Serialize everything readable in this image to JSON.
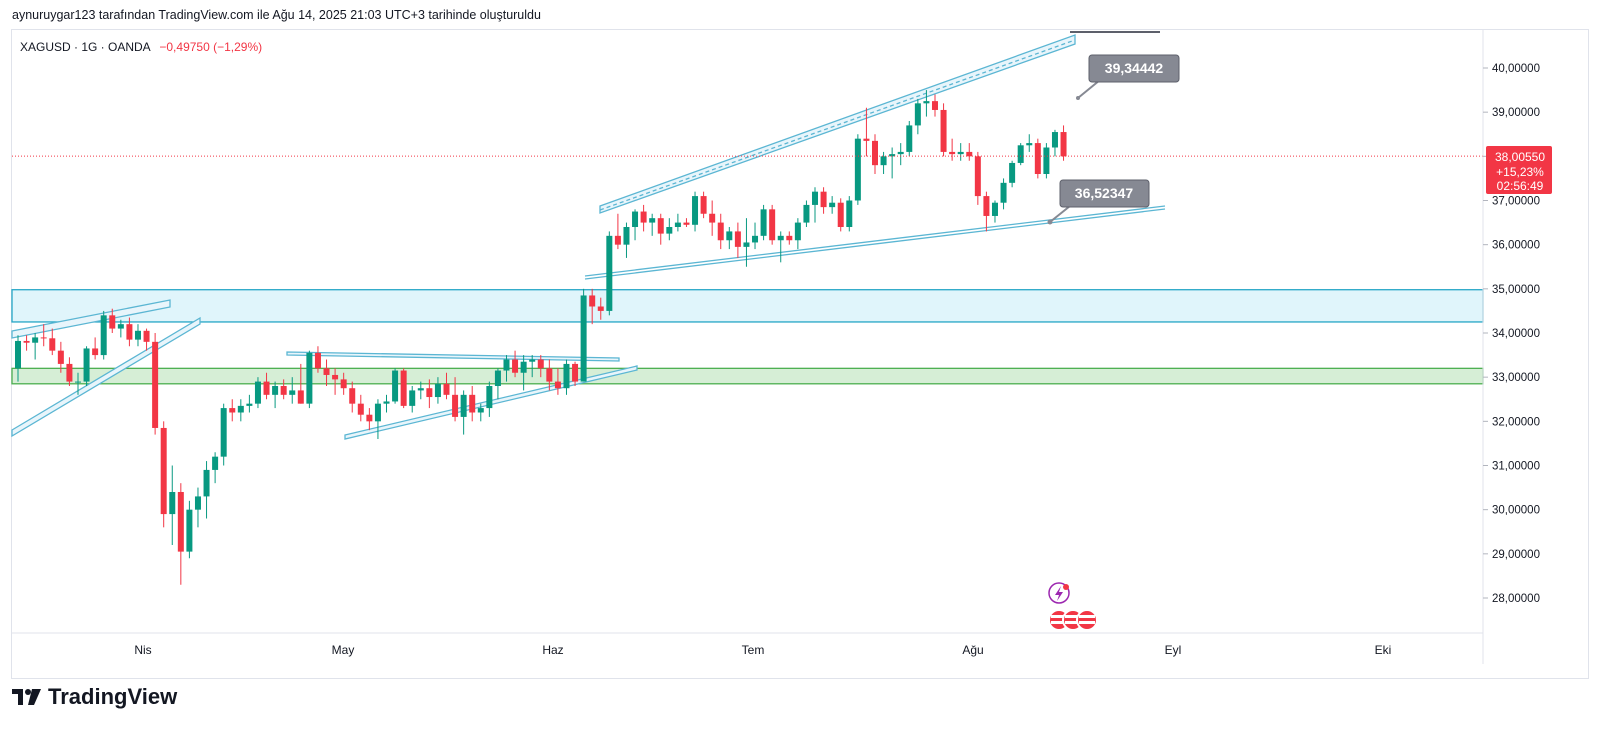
{
  "caption": "aynuruygar123 tarafından TradingView.com ile Ağu 14, 2025 21:03 UTC+3 tarihinde oluşturuldu",
  "symbol": {
    "name": "XAGUSD · 1G · OANDA",
    "change": "−0,49750 (−1,29%)"
  },
  "price_badge": {
    "price": "38,00550",
    "percent": "+15,23%",
    "countdown": "02:56:49"
  },
  "callouts": {
    "upper": "39,34442",
    "lower": "36,52347"
  },
  "brand": "TradingView",
  "colors": {
    "up": "#089981",
    "down": "#f23645",
    "channel": "#5bb6d3",
    "zone_blue": "#e0f5fb",
    "zone_green": "#d6eed6",
    "callout_bg": "#868993"
  },
  "chart_data": {
    "type": "candlestick",
    "title": "XAGUSD · 1G · OANDA",
    "ylim": [
      27.2,
      40.6
    ],
    "y_ticks": [
      "28,00000",
      "29,00000",
      "30,00000",
      "31,00000",
      "32,00000",
      "33,00000",
      "34,00000",
      "35,00000",
      "36,00000",
      "37,00000",
      "38,00000",
      "39,00000",
      "40,00000"
    ],
    "x_ticks": [
      "Nis",
      "May",
      "Haz",
      "Tem",
      "Ağu",
      "Eyl",
      "Eki"
    ],
    "last_price": 38.0055,
    "zones": [
      {
        "name": "resistance-zone",
        "low": 34.25,
        "high": 34.98
      },
      {
        "name": "support-zone",
        "low": 32.85,
        "high": 33.2
      }
    ],
    "candles": [
      {
        "o": 33.2,
        "h": 33.95,
        "l": 32.9,
        "c": 33.82
      },
      {
        "o": 33.82,
        "h": 33.95,
        "l": 33.6,
        "c": 33.78
      },
      {
        "o": 33.78,
        "h": 34.0,
        "l": 33.4,
        "c": 33.9
      },
      {
        "o": 33.9,
        "h": 34.2,
        "l": 33.7,
        "c": 33.88
      },
      {
        "o": 33.88,
        "h": 34.1,
        "l": 33.5,
        "c": 33.6
      },
      {
        "o": 33.6,
        "h": 33.8,
        "l": 33.1,
        "c": 33.3
      },
      {
        "o": 33.3,
        "h": 33.45,
        "l": 32.8,
        "c": 32.9
      },
      {
        "o": 32.9,
        "h": 33.1,
        "l": 32.6,
        "c": 32.9
      },
      {
        "o": 32.9,
        "h": 33.7,
        "l": 32.8,
        "c": 33.65
      },
      {
        "o": 33.65,
        "h": 33.9,
        "l": 33.4,
        "c": 33.5
      },
      {
        "o": 33.5,
        "h": 34.5,
        "l": 33.4,
        "c": 34.4
      },
      {
        "o": 34.4,
        "h": 34.55,
        "l": 34.0,
        "c": 34.1
      },
      {
        "o": 34.1,
        "h": 34.3,
        "l": 33.9,
        "c": 34.2
      },
      {
        "o": 34.2,
        "h": 34.35,
        "l": 33.7,
        "c": 33.85
      },
      {
        "o": 33.85,
        "h": 34.2,
        "l": 33.7,
        "c": 34.05
      },
      {
        "o": 34.05,
        "h": 34.1,
        "l": 33.6,
        "c": 33.8
      },
      {
        "o": 33.8,
        "h": 34.0,
        "l": 31.7,
        "c": 31.85
      },
      {
        "o": 31.85,
        "h": 32.0,
        "l": 29.6,
        "c": 29.9
      },
      {
        "o": 29.9,
        "h": 31.0,
        "l": 29.2,
        "c": 30.4
      },
      {
        "o": 30.4,
        "h": 30.6,
        "l": 28.3,
        "c": 29.05
      },
      {
        "o": 29.05,
        "h": 30.2,
        "l": 28.9,
        "c": 30.0
      },
      {
        "o": 30.0,
        "h": 30.5,
        "l": 29.6,
        "c": 30.3
      },
      {
        "o": 30.3,
        "h": 31.1,
        "l": 29.8,
        "c": 30.9
      },
      {
        "o": 30.9,
        "h": 31.3,
        "l": 30.6,
        "c": 31.2
      },
      {
        "o": 31.2,
        "h": 32.4,
        "l": 31.0,
        "c": 32.3
      },
      {
        "o": 32.3,
        "h": 32.5,
        "l": 32.0,
        "c": 32.2
      },
      {
        "o": 32.2,
        "h": 32.5,
        "l": 32.0,
        "c": 32.35
      },
      {
        "o": 32.35,
        "h": 32.6,
        "l": 32.2,
        "c": 32.4
      },
      {
        "o": 32.4,
        "h": 33.0,
        "l": 32.3,
        "c": 32.9
      },
      {
        "o": 32.9,
        "h": 33.1,
        "l": 32.5,
        "c": 32.6
      },
      {
        "o": 32.6,
        "h": 32.9,
        "l": 32.3,
        "c": 32.8
      },
      {
        "o": 32.8,
        "h": 32.95,
        "l": 32.5,
        "c": 32.6
      },
      {
        "o": 32.6,
        "h": 33.0,
        "l": 32.4,
        "c": 32.7
      },
      {
        "o": 32.7,
        "h": 33.3,
        "l": 32.4,
        "c": 32.4
      },
      {
        "o": 32.4,
        "h": 33.6,
        "l": 32.3,
        "c": 33.55
      },
      {
        "o": 33.55,
        "h": 33.7,
        "l": 33.1,
        "c": 33.2
      },
      {
        "o": 33.2,
        "h": 33.4,
        "l": 32.8,
        "c": 33.05
      },
      {
        "o": 33.05,
        "h": 33.2,
        "l": 32.6,
        "c": 32.95
      },
      {
        "o": 32.95,
        "h": 33.1,
        "l": 32.6,
        "c": 32.75
      },
      {
        "o": 32.75,
        "h": 32.9,
        "l": 32.2,
        "c": 32.4
      },
      {
        "o": 32.4,
        "h": 32.6,
        "l": 32.0,
        "c": 32.15
      },
      {
        "o": 32.15,
        "h": 32.3,
        "l": 31.8,
        "c": 32.0
      },
      {
        "o": 32.0,
        "h": 32.5,
        "l": 31.6,
        "c": 32.4
      },
      {
        "o": 32.4,
        "h": 32.6,
        "l": 32.2,
        "c": 32.45
      },
      {
        "o": 32.45,
        "h": 33.2,
        "l": 32.4,
        "c": 33.15
      },
      {
        "o": 33.15,
        "h": 33.2,
        "l": 32.3,
        "c": 32.35
      },
      {
        "o": 32.35,
        "h": 32.8,
        "l": 32.2,
        "c": 32.7
      },
      {
        "o": 32.7,
        "h": 32.9,
        "l": 32.5,
        "c": 32.75
      },
      {
        "o": 32.75,
        "h": 32.95,
        "l": 32.3,
        "c": 32.55
      },
      {
        "o": 32.55,
        "h": 33.0,
        "l": 32.4,
        "c": 32.85
      },
      {
        "o": 32.85,
        "h": 33.1,
        "l": 32.5,
        "c": 32.6
      },
      {
        "o": 32.6,
        "h": 33.0,
        "l": 32.0,
        "c": 32.1
      },
      {
        "o": 32.1,
        "h": 32.7,
        "l": 31.7,
        "c": 32.6
      },
      {
        "o": 32.6,
        "h": 32.8,
        "l": 32.0,
        "c": 32.2
      },
      {
        "o": 32.2,
        "h": 32.4,
        "l": 32.0,
        "c": 32.3
      },
      {
        "o": 32.3,
        "h": 32.9,
        "l": 32.1,
        "c": 32.8
      },
      {
        "o": 32.8,
        "h": 33.2,
        "l": 32.5,
        "c": 33.15
      },
      {
        "o": 33.15,
        "h": 33.5,
        "l": 32.9,
        "c": 33.4
      },
      {
        "o": 33.4,
        "h": 33.6,
        "l": 33.0,
        "c": 33.1
      },
      {
        "o": 33.1,
        "h": 33.5,
        "l": 32.7,
        "c": 33.35
      },
      {
        "o": 33.35,
        "h": 33.5,
        "l": 33.0,
        "c": 33.4
      },
      {
        "o": 33.4,
        "h": 33.5,
        "l": 33.0,
        "c": 33.2
      },
      {
        "o": 33.2,
        "h": 33.4,
        "l": 32.7,
        "c": 32.9
      },
      {
        "o": 32.9,
        "h": 33.2,
        "l": 32.6,
        "c": 32.75
      },
      {
        "o": 32.75,
        "h": 33.4,
        "l": 32.6,
        "c": 33.3
      },
      {
        "o": 33.3,
        "h": 33.35,
        "l": 32.8,
        "c": 32.9
      },
      {
        "o": 32.9,
        "h": 35.0,
        "l": 32.9,
        "c": 34.85
      },
      {
        "o": 34.85,
        "h": 35.0,
        "l": 34.2,
        "c": 34.6
      },
      {
        "o": 34.6,
        "h": 34.8,
        "l": 34.3,
        "c": 34.5
      },
      {
        "o": 34.5,
        "h": 36.3,
        "l": 34.4,
        "c": 36.2
      },
      {
        "o": 36.2,
        "h": 36.7,
        "l": 35.9,
        "c": 36.0
      },
      {
        "o": 36.0,
        "h": 36.5,
        "l": 35.7,
        "c": 36.4
      },
      {
        "o": 36.4,
        "h": 36.8,
        "l": 36.1,
        "c": 36.75
      },
      {
        "o": 36.75,
        "h": 36.9,
        "l": 36.3,
        "c": 36.5
      },
      {
        "o": 36.5,
        "h": 36.7,
        "l": 36.2,
        "c": 36.6
      },
      {
        "o": 36.6,
        "h": 36.7,
        "l": 36.0,
        "c": 36.25
      },
      {
        "o": 36.25,
        "h": 36.6,
        "l": 36.1,
        "c": 36.4
      },
      {
        "o": 36.4,
        "h": 36.7,
        "l": 36.3,
        "c": 36.5
      },
      {
        "o": 36.5,
        "h": 36.6,
        "l": 36.4,
        "c": 36.45
      },
      {
        "o": 36.45,
        "h": 37.2,
        "l": 36.3,
        "c": 37.1
      },
      {
        "o": 37.1,
        "h": 37.2,
        "l": 36.6,
        "c": 36.7
      },
      {
        "o": 36.7,
        "h": 37.0,
        "l": 36.2,
        "c": 36.5
      },
      {
        "o": 36.5,
        "h": 36.7,
        "l": 35.9,
        "c": 36.1
      },
      {
        "o": 36.1,
        "h": 36.4,
        "l": 35.9,
        "c": 36.3
      },
      {
        "o": 36.3,
        "h": 36.5,
        "l": 35.7,
        "c": 35.95
      },
      {
        "o": 35.95,
        "h": 36.6,
        "l": 35.5,
        "c": 36.05
      },
      {
        "o": 36.05,
        "h": 36.5,
        "l": 35.9,
        "c": 36.2
      },
      {
        "o": 36.2,
        "h": 36.9,
        "l": 36.1,
        "c": 36.8
      },
      {
        "o": 36.8,
        "h": 36.9,
        "l": 36.0,
        "c": 36.1
      },
      {
        "o": 36.1,
        "h": 36.3,
        "l": 35.6,
        "c": 36.2
      },
      {
        "o": 36.2,
        "h": 36.3,
        "l": 36.0,
        "c": 36.1
      },
      {
        "o": 36.1,
        "h": 36.6,
        "l": 35.9,
        "c": 36.5
      },
      {
        "o": 36.5,
        "h": 37.0,
        "l": 36.4,
        "c": 36.9
      },
      {
        "o": 36.9,
        "h": 37.3,
        "l": 36.5,
        "c": 37.2
      },
      {
        "o": 37.2,
        "h": 37.3,
        "l": 36.7,
        "c": 36.85
      },
      {
        "o": 36.85,
        "h": 37.1,
        "l": 36.7,
        "c": 36.95
      },
      {
        "o": 36.95,
        "h": 37.05,
        "l": 36.3,
        "c": 36.4
      },
      {
        "o": 36.4,
        "h": 37.1,
        "l": 36.3,
        "c": 37.0
      },
      {
        "o": 37.0,
        "h": 38.5,
        "l": 36.9,
        "c": 38.4
      },
      {
        "o": 38.4,
        "h": 39.1,
        "l": 38.0,
        "c": 38.35
      },
      {
        "o": 38.35,
        "h": 38.5,
        "l": 37.6,
        "c": 37.8
      },
      {
        "o": 37.8,
        "h": 38.1,
        "l": 37.6,
        "c": 38.0
      },
      {
        "o": 38.0,
        "h": 38.2,
        "l": 37.5,
        "c": 38.05
      },
      {
        "o": 38.05,
        "h": 38.3,
        "l": 37.8,
        "c": 38.1
      },
      {
        "o": 38.1,
        "h": 38.8,
        "l": 38.0,
        "c": 38.7
      },
      {
        "o": 38.7,
        "h": 39.3,
        "l": 38.5,
        "c": 39.2
      },
      {
        "o": 39.2,
        "h": 39.5,
        "l": 38.9,
        "c": 39.25
      },
      {
        "o": 39.25,
        "h": 39.4,
        "l": 38.9,
        "c": 39.05
      },
      {
        "o": 39.05,
        "h": 39.2,
        "l": 38.0,
        "c": 38.1
      },
      {
        "o": 38.1,
        "h": 38.4,
        "l": 37.9,
        "c": 38.05
      },
      {
        "o": 38.05,
        "h": 38.3,
        "l": 37.9,
        "c": 38.1
      },
      {
        "o": 38.1,
        "h": 38.3,
        "l": 37.9,
        "c": 38.0
      },
      {
        "o": 38.0,
        "h": 38.1,
        "l": 36.9,
        "c": 37.1
      },
      {
        "o": 37.1,
        "h": 37.2,
        "l": 36.3,
        "c": 36.65
      },
      {
        "o": 36.65,
        "h": 37.0,
        "l": 36.5,
        "c": 36.95
      },
      {
        "o": 36.95,
        "h": 37.5,
        "l": 36.8,
        "c": 37.4
      },
      {
        "o": 37.4,
        "h": 37.9,
        "l": 37.3,
        "c": 37.85
      },
      {
        "o": 37.85,
        "h": 38.3,
        "l": 37.8,
        "c": 38.25
      },
      {
        "o": 38.25,
        "h": 38.5,
        "l": 38.1,
        "c": 38.3
      },
      {
        "o": 38.3,
        "h": 38.4,
        "l": 37.5,
        "c": 37.6
      },
      {
        "o": 37.6,
        "h": 38.3,
        "l": 37.5,
        "c": 38.2
      },
      {
        "o": 38.2,
        "h": 38.6,
        "l": 38.0,
        "c": 38.55
      },
      {
        "o": 38.55,
        "h": 38.7,
        "l": 37.9,
        "c": 38.0
      }
    ]
  }
}
